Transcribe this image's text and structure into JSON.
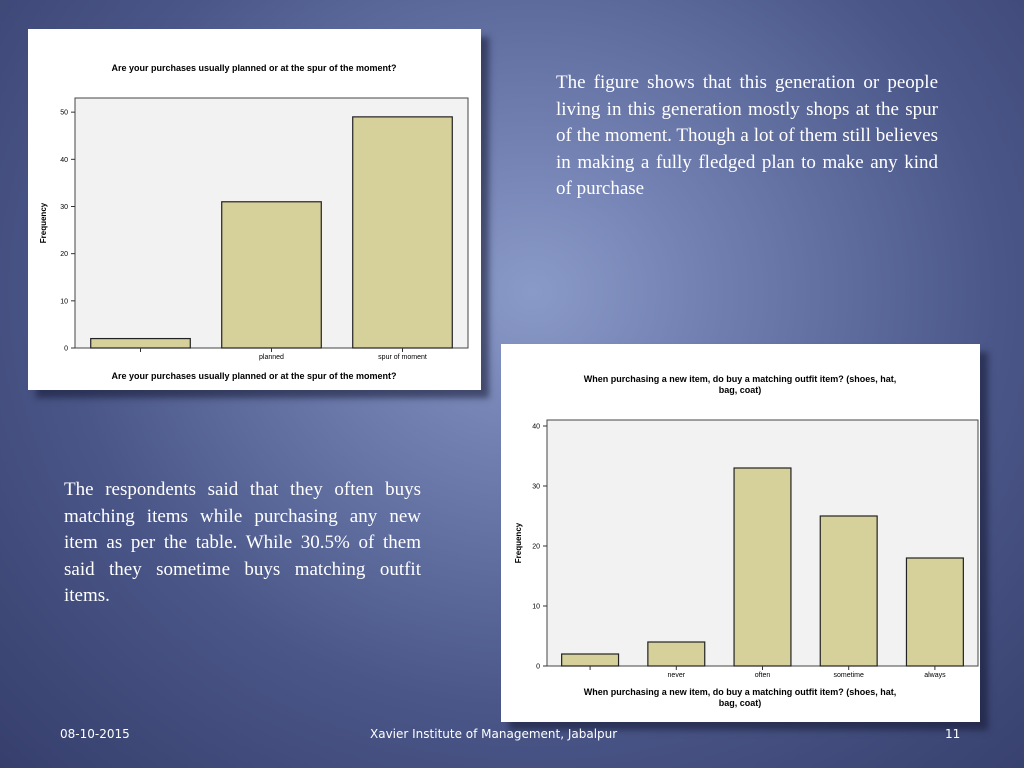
{
  "slide": {
    "text_top": "The figure shows that this generation or people living in this generation mostly shops at the spur of the moment. Though a lot of them still believes in making a fully fledged plan to make any kind of purchase",
    "text_left": "The respondents said that they often buys matching items while purchasing any new item as per the table. While 30.5% of them said they sometime buys matching outfit items.",
    "footer": {
      "date": "08-10-2015",
      "institute": "Xavier Institute of Management, Jabalpur",
      "page": "11"
    }
  },
  "colors": {
    "bar_fill": "#d6d09a",
    "bar_stroke": "#222222",
    "plot_bg": "#f2f2f2"
  },
  "chart_data": [
    {
      "type": "bar",
      "title": "Are your purchases usually planned or at the  spur of the moment?",
      "xlabel": "Are your purchases usually planned or at the  spur of the moment?",
      "ylabel": "Frequency",
      "categories": [
        "",
        "planned",
        "spur of moment"
      ],
      "values": [
        2,
        31,
        49
      ],
      "ylim": [
        0,
        53
      ],
      "yticks": [
        0,
        10,
        20,
        30,
        40,
        50
      ],
      "grid": false
    },
    {
      "type": "bar",
      "title": "When purchasing a new item, do buy a matching outfit item? (shoes, hat, bag, coat)",
      "xlabel": "When purchasing a new item, do buy a matching outfit item? (shoes, hat, bag, coat)",
      "ylabel": "Frequency",
      "categories": [
        "",
        "never",
        "often",
        "sometime",
        "always"
      ],
      "values": [
        2,
        4,
        33,
        25,
        18
      ],
      "ylim": [
        0,
        41
      ],
      "yticks": [
        0,
        10,
        20,
        30,
        40
      ],
      "grid": false
    }
  ]
}
